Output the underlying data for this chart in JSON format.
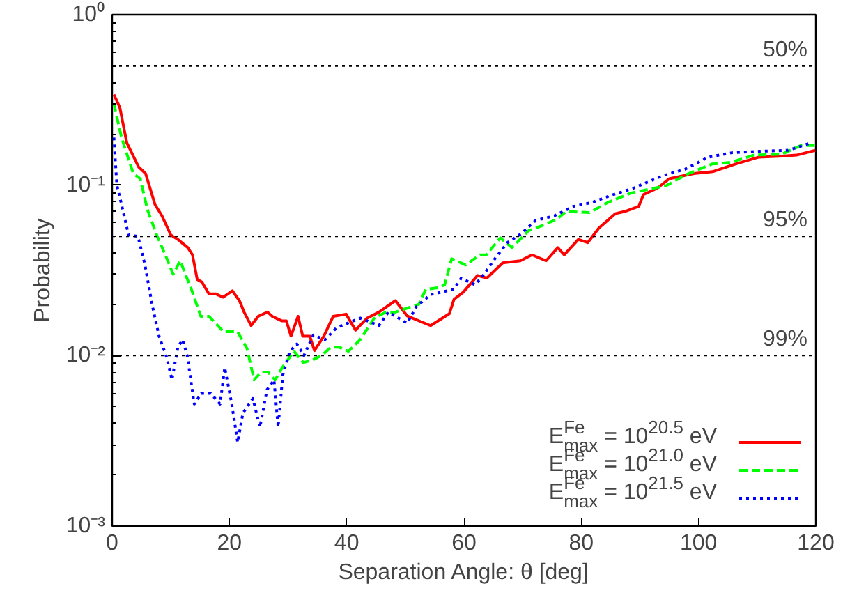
{
  "chart_data": {
    "type": "line",
    "xlabel": "Separation Angle: θ [deg]",
    "ylabel": "Probability",
    "log": "y",
    "xlim": [
      0,
      120
    ],
    "ylim": [
      0.001,
      1
    ],
    "xticks": [
      0,
      20,
      40,
      60,
      80,
      100,
      120
    ],
    "yticks": [
      {
        "value": 0.001,
        "label": "10⁻³"
      },
      {
        "value": 0.01,
        "label": "10⁻²"
      },
      {
        "value": 0.1,
        "label": "10⁻¹"
      },
      {
        "value": 1,
        "label": "10⁰"
      }
    ],
    "grid": false,
    "legend": "bottom right",
    "marker": "none",
    "ref_lines": [
      {
        "axis": "y",
        "value": 0.5,
        "color": "#000000",
        "line_style": "dotted"
      },
      {
        "axis": "y",
        "value": 0.05,
        "color": "#000000",
        "line_style": "dotted"
      },
      {
        "axis": "y",
        "value": 0.01,
        "color": "#000000",
        "line_style": "dotted"
      }
    ],
    "annotations": [
      {
        "text": "50%",
        "y": 0.5
      },
      {
        "text": "95%",
        "y": 0.05
      },
      {
        "text": "99%",
        "y": 0.01
      }
    ],
    "series": [
      {
        "name": "E$_{max}$$^{Fe}$ = 10$^{20.5}$ eV",
        "color": "#ff0000",
        "line_style": "solid",
        "x": [
          0.3,
          1.3,
          2.5,
          4.5,
          5.7,
          7.3,
          8.5,
          10,
          11.2,
          12.9,
          13.7,
          14.5,
          15.3,
          16.5,
          17.7,
          18.9,
          20.5,
          21.7,
          22.5,
          23.7,
          24.9,
          26.5,
          27.3,
          28.9,
          29.7,
          30.5,
          31.7,
          32.5,
          33.7,
          34.5,
          36.1,
          37.7,
          39.9,
          41.5,
          43.5,
          45.5,
          48.3,
          50.3,
          52.7,
          54.3,
          57.5,
          58.3,
          59.9,
          62.3,
          63.9,
          66.6,
          69.6,
          71.6,
          74,
          76,
          77.1,
          79.5,
          81.1,
          83,
          85.8,
          87.4,
          89.8,
          90.6,
          93,
          95,
          99.2,
          102.4,
          106.3,
          110.3,
          114.3,
          116.7,
          119.9
        ],
        "values": [
          0.34,
          0.286,
          0.177,
          0.128,
          0.117,
          0.077,
          0.066,
          0.051,
          0.048,
          0.043,
          0.039,
          0.028,
          0.027,
          0.023,
          0.023,
          0.022,
          0.024,
          0.021,
          0.018,
          0.015,
          0.017,
          0.018,
          0.017,
          0.016,
          0.016,
          0.013,
          0.017,
          0.013,
          0.013,
          0.0107,
          0.013,
          0.017,
          0.0175,
          0.0141,
          0.0166,
          0.018,
          0.021,
          0.0171,
          0.0158,
          0.015,
          0.0176,
          0.0214,
          0.0236,
          0.0295,
          0.0285,
          0.035,
          0.036,
          0.039,
          0.036,
          0.043,
          0.039,
          0.048,
          0.046,
          0.056,
          0.068,
          0.07,
          0.075,
          0.088,
          0.096,
          0.109,
          0.117,
          0.12,
          0.133,
          0.146,
          0.148,
          0.15,
          0.16
        ]
      },
      {
        "name": "E$_{max}$$^{Fe}$ = 10$^{21.0}$ eV",
        "color": "#00ff00",
        "line_style": "dashed",
        "x": [
          0.3,
          1.6,
          3.6,
          4.8,
          6,
          7.6,
          9.2,
          10.4,
          11.6,
          13.6,
          15.1,
          16.5,
          19,
          21.4,
          23,
          24.2,
          25.4,
          26.6,
          27.8,
          29,
          31,
          32.6,
          34.1,
          35.7,
          37.3,
          38.7,
          40.3,
          42.3,
          44.7,
          46.7,
          48.3,
          52.3,
          53.5,
          55.5,
          56.7,
          57.9,
          60.3,
          62.7,
          63.8,
          66.2,
          68.2,
          71,
          73.4,
          75.8,
          77.4,
          81.4,
          84.5,
          88.5,
          94.4,
          98.3,
          102.3,
          105.5,
          109.4,
          114.2,
          117.5,
          119.9
        ],
        "values": [
          0.3,
          0.19,
          0.117,
          0.109,
          0.072,
          0.051,
          0.038,
          0.03,
          0.036,
          0.024,
          0.017,
          0.017,
          0.0138,
          0.0138,
          0.011,
          0.0072,
          0.008,
          0.008,
          0.0072,
          0.0085,
          0.0106,
          0.0091,
          0.0094,
          0.01,
          0.0112,
          0.0112,
          0.0106,
          0.0124,
          0.0166,
          0.018,
          0.018,
          0.02,
          0.0245,
          0.025,
          0.026,
          0.037,
          0.034,
          0.039,
          0.039,
          0.049,
          0.043,
          0.054,
          0.058,
          0.063,
          0.07,
          0.069,
          0.079,
          0.09,
          0.099,
          0.117,
          0.133,
          0.136,
          0.15,
          0.152,
          0.171,
          0.171
        ]
      },
      {
        "name": "E$_{max}$$^{Fe}$ = 10$^{21.5}$ eV",
        "color": "#0000ff",
        "line_style": "dotted",
        "x": [
          0.3,
          0.8,
          1.6,
          2.8,
          4.4,
          5.6,
          6.8,
          8,
          9.2,
          10.2,
          11.2,
          12,
          12.8,
          14,
          15.2,
          16.8,
          18.4,
          19.2,
          20.4,
          21.4,
          22.3,
          24,
          25.2,
          26.4,
          27.6,
          28.3,
          29.1,
          30.3,
          31.5,
          32.7,
          34.3,
          36.3,
          38.3,
          42.3,
          45.5,
          47.1,
          50.3,
          51.9,
          54.3,
          58.3,
          59.5,
          61.9,
          63.4,
          65,
          67.4,
          69.8,
          72.2,
          75.4,
          78.6,
          81.8,
          85,
          88.9,
          93.7,
          97.7,
          101.7,
          105.7,
          110.4,
          115.2,
          119.2
        ],
        "values": [
          0.19,
          0.1,
          0.077,
          0.051,
          0.05,
          0.034,
          0.02,
          0.013,
          0.01,
          0.0072,
          0.0112,
          0.0124,
          0.01,
          0.0052,
          0.006,
          0.006,
          0.0052,
          0.0085,
          0.0052,
          0.0031,
          0.0046,
          0.0056,
          0.0038,
          0.0063,
          0.0072,
          0.0038,
          0.0077,
          0.0106,
          0.0117,
          0.01,
          0.0132,
          0.0124,
          0.0146,
          0.0166,
          0.015,
          0.018,
          0.0155,
          0.0194,
          0.0228,
          0.0245,
          0.0284,
          0.026,
          0.03,
          0.036,
          0.046,
          0.052,
          0.062,
          0.066,
          0.075,
          0.079,
          0.087,
          0.096,
          0.113,
          0.124,
          0.146,
          0.155,
          0.158,
          0.16,
          0.177
        ]
      }
    ]
  }
}
